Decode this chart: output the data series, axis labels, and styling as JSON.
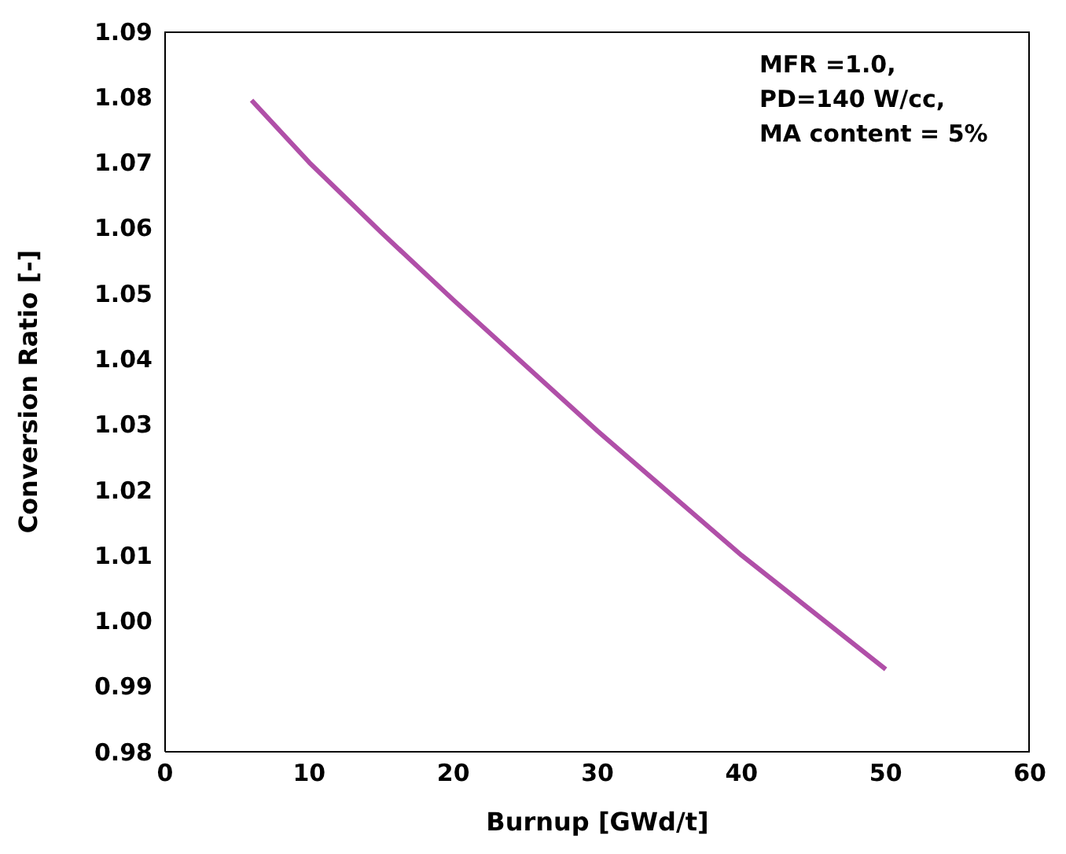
{
  "chart_data": {
    "type": "line",
    "xlabel": "Burnup [GWd/t]",
    "ylabel": "Conversion Ratio [-]",
    "x": [
      6,
      10,
      15,
      20,
      30,
      40,
      50
    ],
    "series": [
      {
        "color": "#b04fa8",
        "values": [
          1.0795,
          1.07,
          1.0593,
          1.049,
          1.029,
          1.01,
          0.9926
        ]
      }
    ],
    "xlim": [
      0,
      60
    ],
    "xticks": [
      0,
      10,
      20,
      30,
      40,
      50,
      60
    ],
    "ylim": [
      0.98,
      1.09
    ],
    "yticks": [
      {
        "value": 0.98,
        "label": "0.98"
      },
      {
        "value": 0.99,
        "label": "0.99"
      },
      {
        "value": 1.0,
        "label": "1.00"
      },
      {
        "value": 1.01,
        "label": "1.01"
      },
      {
        "value": 1.02,
        "label": "1.02"
      },
      {
        "value": 1.03,
        "label": "1.03"
      },
      {
        "value": 1.04,
        "label": "1.04"
      },
      {
        "value": 1.05,
        "label": "1.05"
      },
      {
        "value": 1.06,
        "label": "1.06"
      },
      {
        "value": 1.07,
        "label": "1.07"
      },
      {
        "value": 1.08,
        "label": "1.08"
      },
      {
        "value": 1.09,
        "label": "1.09"
      }
    ],
    "annotations": [
      "MFR =1.0,\nPD=140 W/cc,\nMA content = 5%"
    ],
    "grid": false,
    "legend": false,
    "marker": "none",
    "line_style": "solid"
  }
}
